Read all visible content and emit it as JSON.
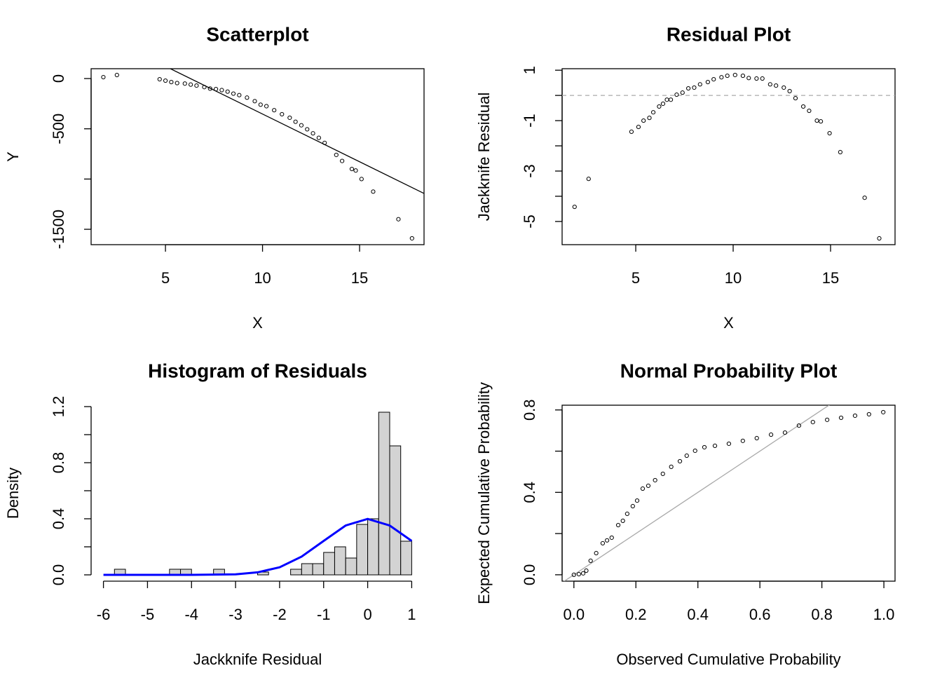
{
  "chart_data": [
    {
      "type": "scatter",
      "title": "Scatterplot",
      "xlabel": "X",
      "ylabel": "Y",
      "box": true,
      "point_color": "#000000",
      "xlim": [
        1.17,
        18.32
      ],
      "ylim": [
        -1653,
        98
      ],
      "xticks": [
        5,
        10,
        15
      ],
      "yticks": [
        0,
        -500,
        -1500
      ],
      "yticks_minor": [
        -1000
      ],
      "x": [
        1.8,
        2.5,
        4.7,
        5.0,
        5.3,
        5.6,
        6.0,
        6.3,
        6.6,
        7.0,
        7.3,
        7.6,
        7.9,
        8.2,
        8.5,
        8.8,
        9.2,
        9.6,
        9.9,
        10.2,
        10.6,
        11.0,
        11.4,
        11.7,
        12.0,
        12.3,
        12.6,
        12.9,
        13.2,
        13.8,
        14.1,
        14.6,
        14.8,
        15.1,
        15.7,
        17.0,
        17.7
      ],
      "values": [
        14,
        35,
        -7,
        -21,
        -35,
        -45,
        -50,
        -60,
        -70,
        -85,
        -100,
        -105,
        -115,
        -130,
        -150,
        -165,
        -190,
        -225,
        -260,
        -275,
        -315,
        -355,
        -390,
        -430,
        -465,
        -505,
        -545,
        -590,
        -640,
        -760,
        -820,
        -900,
        -915,
        -1000,
        -1125,
        -1400,
        -1590
      ],
      "fit_line": {
        "intercept": 597,
        "slope": -95,
        "color": "#000000"
      }
    },
    {
      "type": "scatter",
      "title": "Residual Plot",
      "xlabel": "X",
      "ylabel": "Jackknife Residual",
      "box": true,
      "point_color": "#000000",
      "xlim": [
        1.22,
        18.31
      ],
      "ylim": [
        -5.92,
        1.06
      ],
      "xticks": [
        5,
        10,
        15
      ],
      "yticks": [
        1,
        -1,
        -3,
        -5
      ],
      "yticks_minor": [
        0,
        -2,
        -4
      ],
      "x": [
        1.86,
        2.58,
        4.78,
        5.14,
        5.4,
        5.7,
        5.9,
        6.2,
        6.4,
        6.6,
        6.8,
        7.1,
        7.4,
        7.7,
        8.0,
        8.3,
        8.7,
        9.0,
        9.4,
        9.7,
        10.1,
        10.5,
        10.8,
        11.2,
        11.5,
        11.9,
        12.2,
        12.6,
        12.9,
        13.2,
        13.6,
        13.9,
        14.3,
        14.5,
        14.95,
        15.5,
        16.75,
        17.5
      ],
      "values": [
        -4.42,
        -3.31,
        -1.44,
        -1.25,
        -1.0,
        -0.89,
        -0.67,
        -0.44,
        -0.33,
        -0.17,
        -0.17,
        0.03,
        0.11,
        0.28,
        0.31,
        0.44,
        0.53,
        0.64,
        0.72,
        0.78,
        0.81,
        0.78,
        0.69,
        0.67,
        0.67,
        0.44,
        0.39,
        0.31,
        0.17,
        -0.11,
        -0.44,
        -0.61,
        -1.0,
        -1.03,
        -1.5,
        -2.25,
        -4.06,
        -5.67
      ],
      "hline": {
        "y": 0,
        "color": "#a9a9a9",
        "style": "dashed"
      }
    },
    {
      "type": "histogram",
      "title": "Histogram of Residuals",
      "xlabel": "Jackknife Residual",
      "ylabel": "Density",
      "box": false,
      "color": "#d3d3d3",
      "xlim": [
        -6.28,
        1.28
      ],
      "ylim": [
        -0.045,
        1.21
      ],
      "xticks": [
        -6,
        -5,
        -4,
        -3,
        -2,
        -1,
        0,
        1
      ],
      "yticks": [
        {
          "value": 0,
          "label": "0.0"
        },
        0.4,
        0.8,
        1.2
      ],
      "yticks_minor": [
        0.2,
        0.6,
        1.0
      ],
      "bins": [
        -6,
        -5.75,
        -5.5,
        -5.25,
        -5,
        -4.75,
        -4.5,
        -4.25,
        -4,
        -3.75,
        -3.5,
        -3.25,
        -3,
        -2.75,
        -2.5,
        -2.25,
        -2,
        -1.75,
        -1.5,
        -1.25,
        -1,
        -0.75,
        -0.5,
        -0.25,
        0,
        0.25,
        0.5,
        0.75,
        1
      ],
      "values": [
        0,
        0.04,
        0,
        0,
        0,
        0,
        0.04,
        0.04,
        0,
        0,
        0.04,
        0,
        0,
        0,
        0.02,
        0,
        0,
        0.04,
        0.08,
        0.08,
        0.16,
        0.2,
        0.12,
        0.36,
        0.4,
        1.16,
        0.92,
        0.24
      ],
      "curve": {
        "color": "#0000ff",
        "x": [
          -6,
          -5,
          -4,
          -3,
          -2.5,
          -2,
          -1.5,
          -1,
          -0.5,
          0,
          0.5,
          1
        ],
        "values": [
          0,
          0,
          0.0001,
          0.004,
          0.018,
          0.054,
          0.13,
          0.242,
          0.352,
          0.399,
          0.352,
          0.242
        ]
      }
    },
    {
      "type": "scatter",
      "title": "Normal Probability Plot",
      "xlabel": "Observed Cumulative Probability",
      "ylabel": "Expected Cumulative Probability",
      "box": true,
      "point_color": "#000000",
      "xlim": [
        -0.038,
        1.036
      ],
      "ylim": [
        -0.031,
        0.823
      ],
      "xticks": [
        {
          "value": 0,
          "label": "0.0"
        },
        0.2,
        0.4,
        0.6,
        0.8,
        {
          "value": 1,
          "label": "1.0"
        }
      ],
      "yticks": [
        {
          "value": 0,
          "label": "0.0"
        },
        0.4,
        0.8
      ],
      "yticks_minor": [
        0.2,
        0.6
      ],
      "x": [
        0,
        0.016,
        0.03,
        0.04,
        0.054,
        0.072,
        0.093,
        0.107,
        0.122,
        0.143,
        0.158,
        0.172,
        0.19,
        0.204,
        0.222,
        0.24,
        0.262,
        0.287,
        0.314,
        0.342,
        0.364,
        0.391,
        0.421,
        0.455,
        0.5,
        0.545,
        0.59,
        0.636,
        0.681,
        0.726,
        0.771,
        0.817,
        0.862,
        0.907,
        0.952,
        0.998
      ],
      "values": [
        0,
        0.003,
        0.007,
        0.02,
        0.068,
        0.105,
        0.153,
        0.167,
        0.18,
        0.241,
        0.262,
        0.296,
        0.333,
        0.36,
        0.418,
        0.432,
        0.459,
        0.49,
        0.524,
        0.551,
        0.578,
        0.602,
        0.619,
        0.626,
        0.636,
        0.65,
        0.663,
        0.68,
        0.69,
        0.724,
        0.741,
        0.752,
        0.762,
        0.772,
        0.779,
        0.789
      ],
      "ref_line": {
        "intercept": 0,
        "slope": 1,
        "color": "#a9a9a9"
      }
    }
  ]
}
